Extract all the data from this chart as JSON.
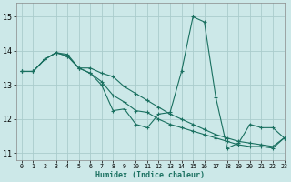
{
  "xlabel": "Humidex (Indice chaleur)",
  "xlim": [
    -0.5,
    23
  ],
  "ylim": [
    10.8,
    15.4
  ],
  "xticks": [
    0,
    1,
    2,
    3,
    4,
    5,
    6,
    7,
    8,
    9,
    10,
    11,
    12,
    13,
    14,
    15,
    16,
    17,
    18,
    19,
    20,
    21,
    22,
    23
  ],
  "yticks": [
    11,
    12,
    13,
    14,
    15
  ],
  "background_color": "#cce8e8",
  "grid_color": "#aacccc",
  "line_color": "#1a7060",
  "line1_x": [
    0,
    1,
    2,
    3,
    4,
    5,
    6,
    7,
    8,
    9,
    10,
    11,
    12,
    13,
    14,
    15,
    16,
    17,
    18,
    19,
    20,
    21,
    22,
    23
  ],
  "line1_y": [
    13.4,
    13.4,
    13.75,
    13.95,
    13.85,
    13.5,
    13.35,
    13.0,
    12.25,
    12.3,
    11.85,
    11.75,
    12.15,
    12.2,
    13.4,
    15.0,
    14.85,
    12.65,
    11.15,
    11.3,
    11.85,
    11.75,
    11.75,
    11.45
  ],
  "line2_x": [
    0,
    1,
    2,
    3,
    4,
    5,
    6,
    7,
    8,
    9,
    10,
    11,
    12,
    13,
    14,
    15,
    16,
    17,
    18,
    19,
    20,
    21,
    22,
    23
  ],
  "line2_y": [
    13.4,
    13.4,
    13.75,
    13.95,
    13.85,
    13.5,
    13.5,
    13.35,
    13.25,
    12.95,
    12.75,
    12.55,
    12.35,
    12.15,
    12.0,
    11.85,
    11.7,
    11.55,
    11.45,
    11.35,
    11.3,
    11.25,
    11.2,
    11.45
  ],
  "line3_x": [
    0,
    1,
    2,
    3,
    4,
    5,
    6,
    7,
    8,
    9,
    10,
    11,
    12,
    13,
    14,
    15,
    16,
    17,
    18,
    19,
    20,
    21,
    22,
    23
  ],
  "line3_y": [
    13.4,
    13.4,
    13.75,
    13.95,
    13.9,
    13.5,
    13.35,
    13.1,
    12.7,
    12.5,
    12.25,
    12.2,
    12.0,
    11.85,
    11.75,
    11.65,
    11.55,
    11.45,
    11.35,
    11.25,
    11.2,
    11.2,
    11.15,
    11.45
  ]
}
